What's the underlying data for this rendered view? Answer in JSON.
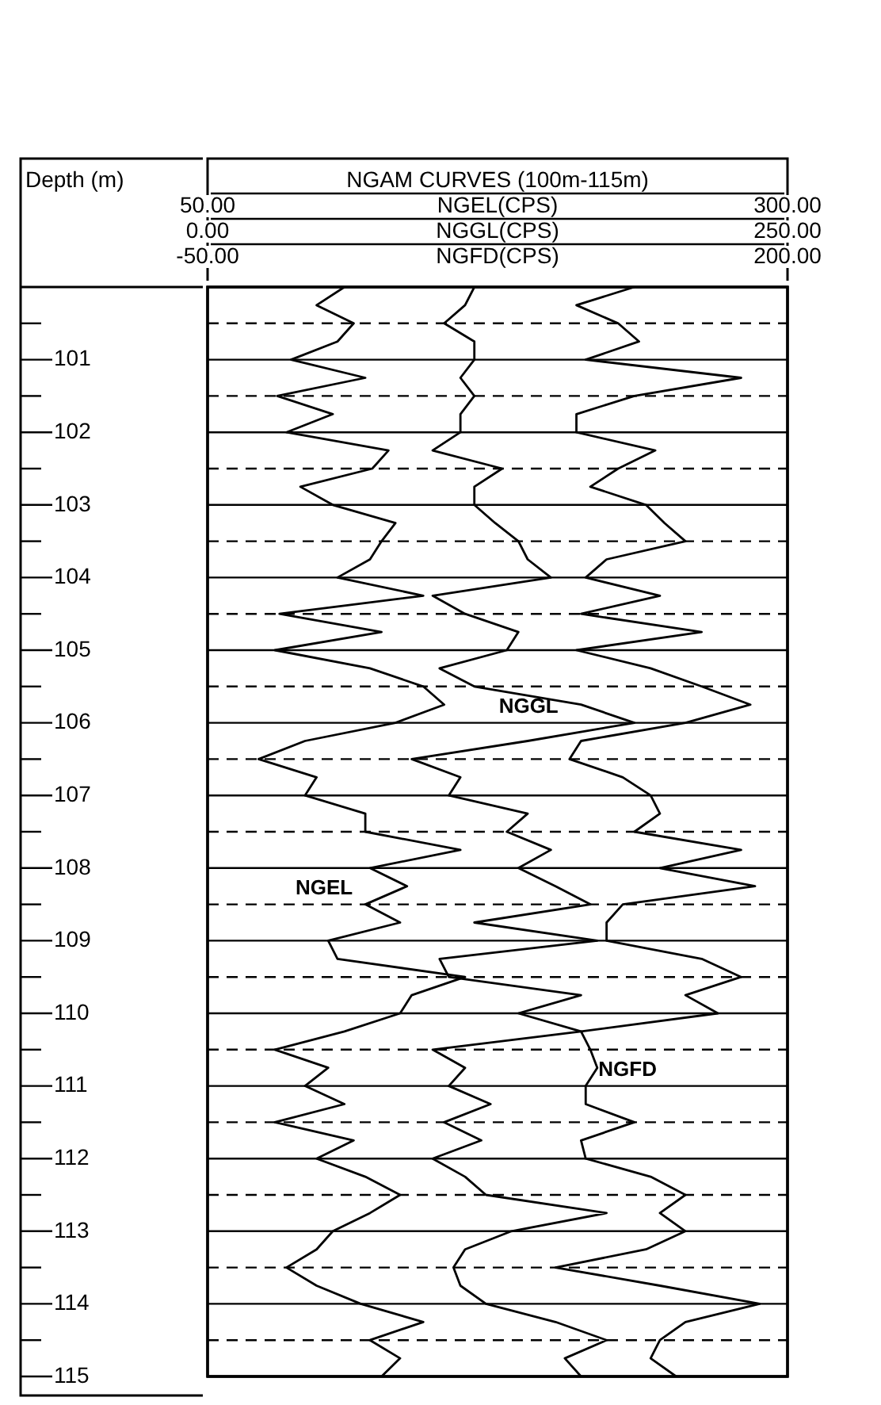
{
  "chart_data": [
    {
      "type": "line",
      "title": "NGAM CURVES (100m-115m)",
      "ylabel": "Depth (m)",
      "orientation": "horizontal",
      "marker": "none",
      "grid": "y",
      "xlabel": "NGEL(CPS)",
      "xlim": [
        50,
        300
      ],
      "xticks": [
        {
          "value": 50,
          "label": "50.00"
        },
        {
          "value": 300,
          "label": "300.00"
        }
      ],
      "ylim": [
        115,
        100
      ],
      "yticks": [
        {
          "value": 100.5,
          "label": null
        },
        101,
        {
          "value": 101.5,
          "label": null
        },
        102,
        {
          "value": 102.5,
          "label": null
        },
        103,
        {
          "value": 103.5,
          "label": null
        },
        104,
        {
          "value": 104.5,
          "label": null
        },
        105,
        {
          "value": 105.5,
          "label": null
        },
        106,
        {
          "value": 106.5,
          "label": null
        },
        107,
        {
          "value": 107.5,
          "label": null
        },
        108,
        {
          "value": 108.5,
          "label": null
        },
        109,
        {
          "value": 109.5,
          "label": null
        },
        110,
        {
          "value": 110.5,
          "label": null
        },
        111,
        {
          "value": 111.5,
          "label": null
        },
        112,
        {
          "value": 112.5,
          "label": null
        },
        113,
        {
          "value": 113.5,
          "label": null
        },
        114,
        {
          "value": 114.5,
          "label": null
        },
        115
      ],
      "x": [
        100,
        100.25,
        100.5,
        100.75,
        101,
        101.25,
        101.5,
        101.75,
        102,
        102.25,
        102.5,
        102.75,
        103,
        103.25,
        103.5,
        103.75,
        104,
        104.25,
        104.5,
        104.75,
        105,
        105.25,
        105.5,
        105.75,
        106,
        106.25,
        106.5,
        106.75,
        107,
        107.25,
        107.5,
        107.75,
        108,
        108.25,
        108.5,
        108.75,
        109,
        109.25,
        109.5,
        109.75,
        110,
        110.25,
        110.5,
        110.75,
        111,
        111.25,
        111.5,
        111.75,
        112,
        112.25,
        112.5,
        112.75,
        113,
        113.25,
        113.5,
        113.75,
        114,
        114.25,
        114.5,
        114.75,
        115
      ],
      "series": [
        {
          "name": "NGEL",
          "color": "#000000",
          "values": [
            109,
            97,
            113,
            106,
            86,
            118,
            80,
            104,
            84,
            128,
            121,
            90,
            104,
            131,
            125,
            120,
            106,
            143,
            81,
            125,
            79,
            120,
            143,
            152,
            131,
            92,
            72,
            97,
            92,
            118,
            118,
            159,
            120,
            136,
            118,
            133,
            102,
            106,
            161,
            138,
            133,
            109,
            79,
            102,
            92,
            109,
            79,
            113,
            97,
            118,
            133,
            120,
            104,
            97,
            84,
            97,
            116,
            143,
            120,
            133,
            125
          ]
        }
      ]
    },
    {
      "type": "line",
      "orientation": "horizontal",
      "marker": "none",
      "tick_labels": "x",
      "xlabel": "NGGL(CPS)",
      "xlim": [
        0,
        250
      ],
      "xticks": [
        {
          "value": 0,
          "label": "0.00"
        },
        {
          "value": 250,
          "label": "250.00"
        }
      ],
      "ylim": [
        115,
        100
      ],
      "x": [
        100,
        100.25,
        100.5,
        100.75,
        101,
        101.25,
        101.5,
        101.75,
        102,
        102.25,
        102.5,
        102.75,
        103,
        103.25,
        103.5,
        103.75,
        104,
        104.25,
        104.5,
        104.75,
        105,
        105.25,
        105.5,
        105.75,
        106,
        106.25,
        106.5,
        106.75,
        107,
        107.25,
        107.5,
        107.75,
        108,
        108.25,
        108.5,
        108.75,
        109,
        109.25,
        109.5,
        109.75,
        110,
        110.25,
        110.5,
        110.75,
        111,
        111.25,
        111.5,
        111.75,
        112,
        112.25,
        112.5,
        112.75,
        113,
        113.25,
        113.5,
        113.75,
        114,
        114.25,
        114.5,
        114.75,
        115
      ],
      "series": [
        {
          "name": "NGGL",
          "color": "#000000",
          "values": [
            115,
            111,
            102,
            115,
            115,
            109,
            115,
            109,
            109,
            97,
            127,
            115,
            115,
            124,
            134,
            138,
            148,
            97,
            111,
            134,
            129,
            100,
            115,
            161,
            184,
            138,
            88,
            109,
            104,
            138,
            129,
            148,
            134,
            150,
            165,
            115,
            168,
            100,
            104,
            161,
            134,
            161,
            97,
            111,
            104,
            122,
            102,
            118,
            97,
            111,
            120,
            172,
            131,
            111,
            106,
            109,
            120,
            150,
            172,
            154,
            161
          ]
        }
      ]
    },
    {
      "type": "line",
      "orientation": "horizontal",
      "marker": "none",
      "tick_labels": "x",
      "xlabel": "NGFD(CPS)",
      "xlim": [
        -50,
        200
      ],
      "xticks": [
        {
          "value": -50,
          "label": "-50.00"
        },
        {
          "value": 200,
          "label": "200.00"
        }
      ],
      "ylim": [
        115,
        100
      ],
      "x": [
        100,
        100.25,
        100.5,
        100.75,
        101,
        101.25,
        101.5,
        101.75,
        102,
        102.25,
        102.5,
        102.75,
        103,
        103.25,
        103.5,
        103.75,
        104,
        104.25,
        104.5,
        104.75,
        105,
        105.25,
        105.5,
        105.75,
        106,
        106.25,
        106.5,
        106.75,
        107,
        107.25,
        107.5,
        107.75,
        108,
        108.25,
        108.5,
        108.75,
        109,
        109.25,
        109.5,
        109.75,
        110,
        110.25,
        110.5,
        110.75,
        111,
        111.25,
        111.5,
        111.75,
        112,
        112.25,
        112.5,
        112.75,
        113,
        113.25,
        113.5,
        113.75,
        114,
        114.25,
        114.5,
        114.75,
        115
      ],
      "series": [
        {
          "name": "NGFD",
          "color": "#000000",
          "values": [
            134,
            109,
            127,
            136,
            113,
            180,
            134,
            109,
            109,
            143,
            127,
            115,
            139,
            147,
            156,
            122,
            113,
            145,
            111,
            163,
            109,
            141,
            163,
            184,
            156,
            111,
            106,
            129,
            141,
            145,
            134,
            180,
            145,
            186,
            129,
            122,
            122,
            163,
            180,
            156,
            170,
            111,
            115,
            118,
            113,
            113,
            134,
            111,
            113,
            141,
            156,
            145,
            156,
            139,
            100,
            145,
            188,
            156,
            145,
            141,
            152
          ]
        }
      ]
    }
  ]
}
